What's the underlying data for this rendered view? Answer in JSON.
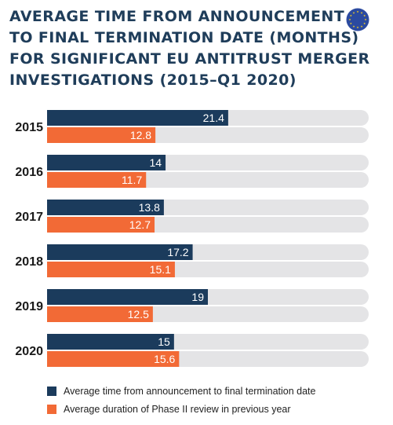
{
  "title_lines": [
    "AVERAGE TIME FROM ANNOUNCEMENT",
    "TO FINAL TERMINATION DATE (MONTHS)",
    "FOR SIGNIFICANT EU ANTITRUST MERGER",
    "INVESTIGATIONS (2015–Q1 2020)"
  ],
  "colors": {
    "navy": "#1b3b5c",
    "orange": "#f26a36",
    "track": "#e4e4e6",
    "title": "#1f3d5a",
    "flag_blue": "#2b4aa0",
    "flag_star": "#f5cf1f"
  },
  "chart_data": {
    "type": "bar",
    "orientation": "horizontal",
    "categories": [
      "2015",
      "2016",
      "2017",
      "2018",
      "2019",
      "2020"
    ],
    "series": [
      {
        "name": "Average time from announcement to final termination date",
        "color": "#1b3b5c",
        "values": [
          21.4,
          14,
          13.8,
          17.2,
          19,
          15
        ]
      },
      {
        "name": "Average duration of Phase II review in previous year",
        "color": "#f26a36",
        "values": [
          12.8,
          11.7,
          12.7,
          15.1,
          12.5,
          15.6
        ]
      }
    ],
    "xlim": [
      0,
      38
    ],
    "grid": false,
    "legend": "bottom"
  }
}
